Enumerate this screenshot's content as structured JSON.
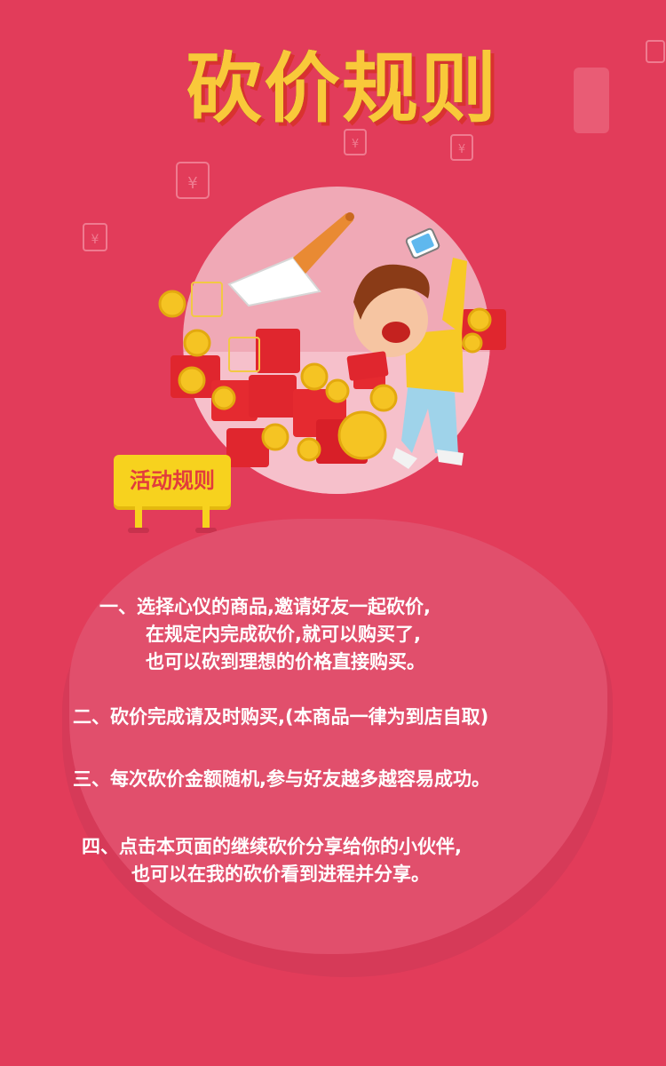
{
  "title": "砍价规则",
  "sign": {
    "label": "活动规则"
  },
  "rules": [
    {
      "lines": [
        "一、选择心仪的商品,邀请好友一起砍价,",
        "在规定内完成砍价,就可以购买了,",
        "也可以砍到理想的价格直接购买。"
      ]
    },
    {
      "lines": [
        "二、砍价完成请及时购买,(本商品一律为到店自取)"
      ]
    },
    {
      "lines": [
        "三、每次砍价金额随机,参与好友越多越容易成功。"
      ]
    },
    {
      "lines": [
        "四、点击本页面的继续砍价分享给你的小伙伴,",
        "也可以在我的砍价看到进程并分享。"
      ]
    }
  ],
  "colors": {
    "background": "#e23c5a",
    "title": "#f9c93a",
    "sign": "#f7d21e",
    "rule_text": "#ffffff"
  },
  "icons": [
    "cleaver-icon",
    "phone-icon",
    "red-envelope-icon",
    "gold-coin-icon"
  ]
}
